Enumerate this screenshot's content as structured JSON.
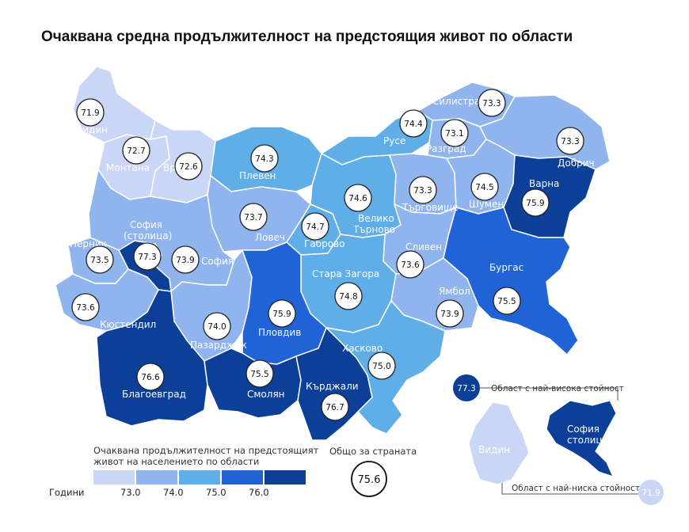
{
  "title": "Очаквана средна продължителност на предстоящия живот по области",
  "legend": {
    "title_line1": "Очаквана продължителност на предстоящият",
    "title_line2": "живот на населението по области",
    "units": "Години",
    "ticks": [
      "73.0",
      "74.0",
      "75.0",
      "76.0"
    ],
    "colors": [
      "#c9d6f5",
      "#8fb4ee",
      "#5faee8",
      "#1f63d6",
      "#0b3f98"
    ]
  },
  "country": {
    "label": "Общо за страната",
    "value": "75.6"
  },
  "regions": [
    {
      "name": "Видин",
      "value": "71.9"
    },
    {
      "name": "Монтана",
      "value": "72.7"
    },
    {
      "name": "Враца",
      "value": "72.6"
    },
    {
      "name": "Плевен",
      "value": "74.3"
    },
    {
      "name": "Русе",
      "value": "74.4"
    },
    {
      "name": "Силистра",
      "value": "73.3"
    },
    {
      "name": "Разград",
      "value": "73.1"
    },
    {
      "name": "Добрич",
      "value": "73.3"
    },
    {
      "name": "Велико Търново",
      "value": "74.6"
    },
    {
      "name": "Търговище",
      "value": "73.3"
    },
    {
      "name": "Шумен",
      "value": "74.5"
    },
    {
      "name": "Варна",
      "value": "75.9"
    },
    {
      "name": "София (столица)",
      "value": "77.3"
    },
    {
      "name": "Перник",
      "value": "73.5"
    },
    {
      "name": "София",
      "value": "73.9"
    },
    {
      "name": "Ловеч",
      "value": "73.7"
    },
    {
      "name": "Габрово",
      "value": "74.7"
    },
    {
      "name": "Сливен",
      "value": "73.6"
    },
    {
      "name": "Кюстендил",
      "value": "73.6"
    },
    {
      "name": "Стара Загора",
      "value": "74.8"
    },
    {
      "name": "Ямбол",
      "value": "73.9"
    },
    {
      "name": "Бургас",
      "value": "75.5"
    },
    {
      "name": "Пазарджик",
      "value": "74.0"
    },
    {
      "name": "Пловдив",
      "value": "75.9"
    },
    {
      "name": "Благоевград",
      "value": "76.6"
    },
    {
      "name": "Смолян",
      "value": "75.5"
    },
    {
      "name": "Кърджали",
      "value": "76.7"
    },
    {
      "name": "Хасково",
      "value": "75.0"
    }
  ],
  "inset": {
    "highest_label": "Област с най-висока стойност",
    "highest_value": "77.3",
    "highest_region_line1": "София",
    "highest_region_line2": "столица",
    "lowest_label": "Област с най-ниска стойност",
    "lowest_value": "71.9",
    "lowest_region": "Видин"
  }
}
